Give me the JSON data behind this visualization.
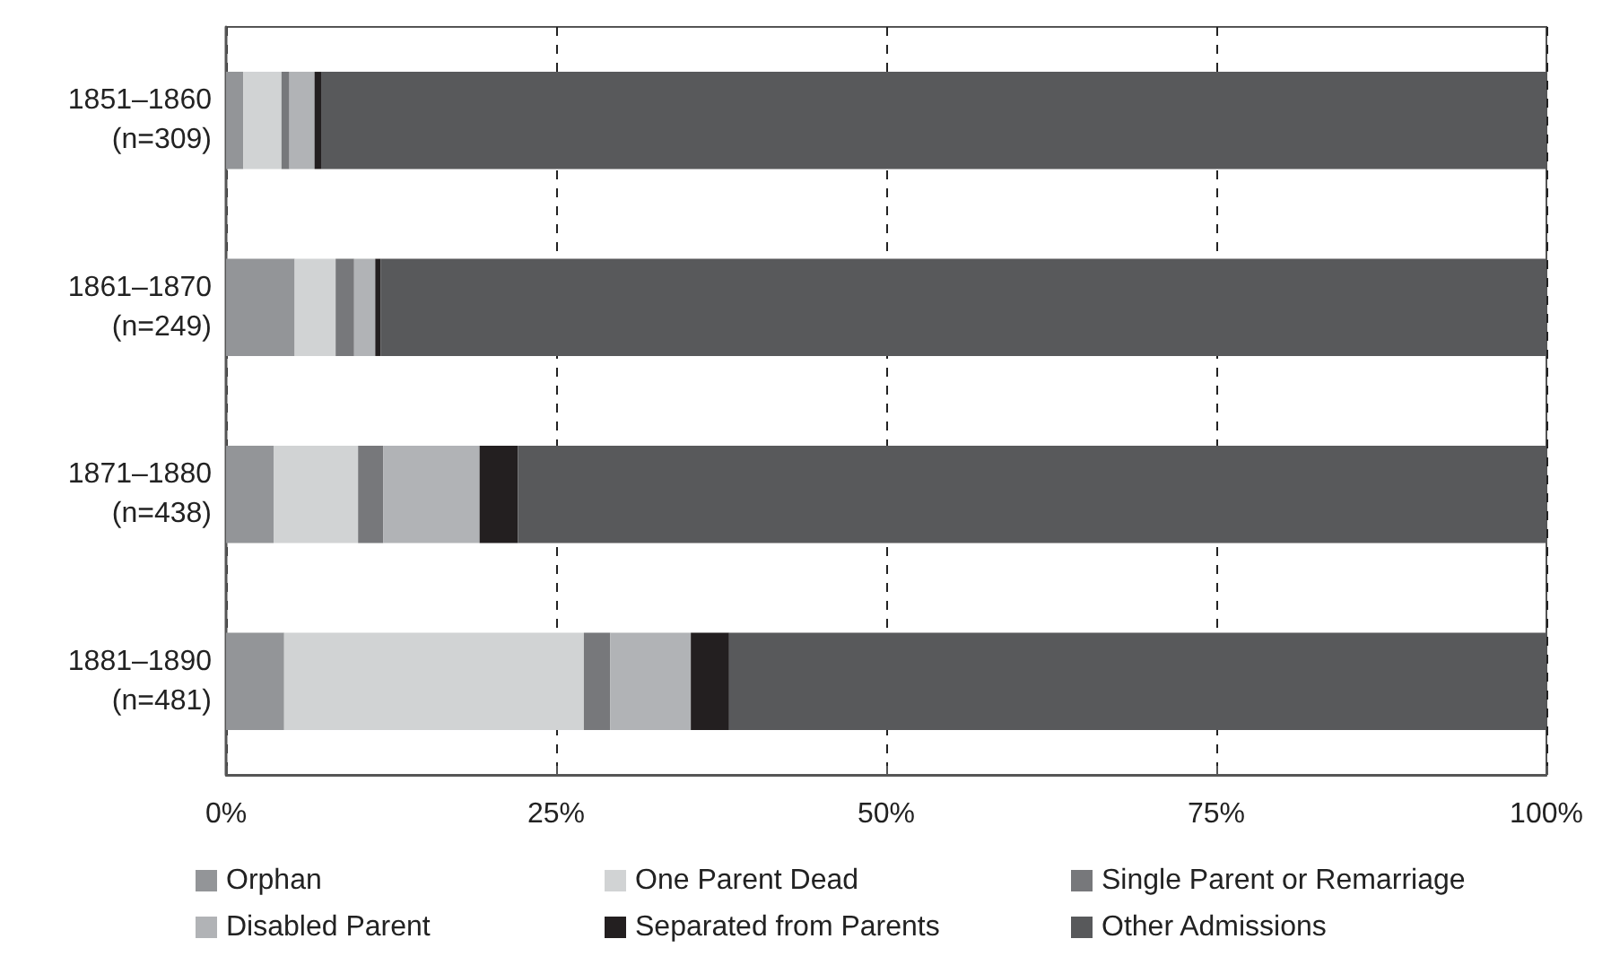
{
  "chart_data": {
    "type": "bar",
    "orientation": "horizontal",
    "stacked": true,
    "categories": [
      "1851–1860\n(n=309)",
      "1861–1870\n(n=249)",
      "1871–1880\n(n=438)",
      "1881–1890\n(n=481)"
    ],
    "series": [
      {
        "name": "Orphan",
        "color": "#939598",
        "values": [
          1.3,
          5.2,
          3.6,
          4.4
        ]
      },
      {
        "name": "One Parent Dead",
        "color": "#d1d3d4",
        "values": [
          2.9,
          3.1,
          6.4,
          22.7
        ]
      },
      {
        "name": "Single Parent or Remarriage",
        "color": "#77787b",
        "values": [
          0.6,
          1.4,
          1.9,
          2.0
        ]
      },
      {
        "name": "Disabled Parent",
        "color": "#b1b3b6",
        "values": [
          1.9,
          1.6,
          7.3,
          6.1
        ]
      },
      {
        "name": "Separated from Parents",
        "color": "#231f20",
        "values": [
          0.5,
          0.4,
          2.9,
          2.9
        ]
      },
      {
        "name": "Other Admissions",
        "color": "#58595b",
        "values": [
          92.8,
          88.3,
          77.9,
          61.9
        ]
      }
    ],
    "xlim": [
      0,
      100
    ],
    "xticks": [
      {
        "value": 0,
        "label": "0%"
      },
      {
        "value": 25,
        "label": "25%"
      },
      {
        "value": 50,
        "label": "50%"
      },
      {
        "value": 75,
        "label": "75%"
      },
      {
        "value": 100,
        "label": "100%"
      }
    ],
    "grid": "x",
    "legend": "bottom"
  }
}
